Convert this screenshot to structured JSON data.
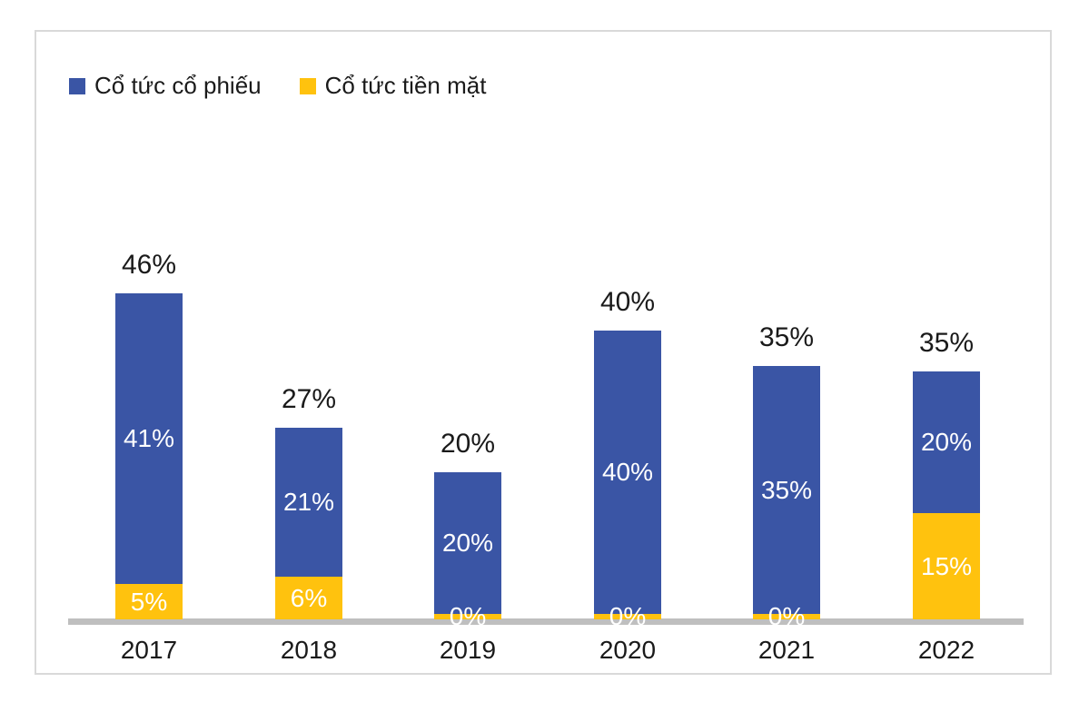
{
  "colors": {
    "stock_blue": "#3A55A5",
    "cash_yellow": "#FFC20E",
    "axis_gray": "#BFBFBF",
    "frame_border": "#D9D9D9",
    "label_dark": "#1A1A1A",
    "label_light": "#FFFFFF",
    "background": "#FFFFFF"
  },
  "legend": {
    "position": "top-left",
    "items": [
      {
        "label": "Cổ tức cổ phiếu",
        "color": "#3A55A5"
      },
      {
        "label": "Cổ tức tiền mặt",
        "color": "#FFC20E"
      }
    ]
  },
  "chart_data": {
    "type": "bar",
    "subtype": "stacked-column",
    "categories": [
      "2017",
      "2018",
      "2019",
      "2020",
      "2021",
      "2022"
    ],
    "series": [
      {
        "name": "Cổ tức cổ phiếu",
        "color": "#3A55A5",
        "stack_position": "top",
        "values": [
          41,
          21,
          20,
          40,
          35,
          20
        ],
        "labels": [
          "41%",
          "21%",
          "20%",
          "40%",
          "35%",
          "20%"
        ]
      },
      {
        "name": "Cổ tức tiền mặt",
        "color": "#FFC20E",
        "stack_position": "bottom",
        "values": [
          5,
          6,
          0,
          0,
          0,
          15
        ],
        "labels": [
          "5%",
          "6%",
          "0%",
          "0%",
          "0%",
          "15%"
        ]
      }
    ],
    "totals": [
      46,
      27,
      20,
      40,
      35,
      35
    ],
    "total_labels": [
      "46%",
      "27%",
      "20%",
      "40%",
      "35%",
      "35%"
    ],
    "value_unit": "%",
    "grid": false,
    "y_axis_visible": false,
    "x_axis_line_visible": true,
    "legend_position": "top-left"
  }
}
